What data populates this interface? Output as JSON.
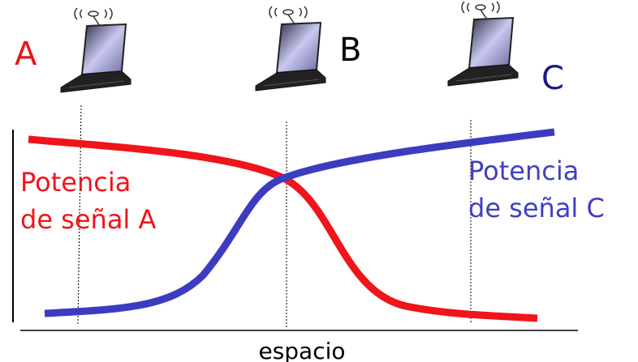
{
  "nodes": [
    {
      "label": "A"
    },
    {
      "label": "B"
    },
    {
      "label": "C"
    }
  ],
  "signals": [
    {
      "lines": [
        "Potencia",
        "de señal A"
      ]
    },
    {
      "lines": [
        "Potencia",
        "de señal C"
      ]
    }
  ],
  "x_axis_label": "espacio"
}
